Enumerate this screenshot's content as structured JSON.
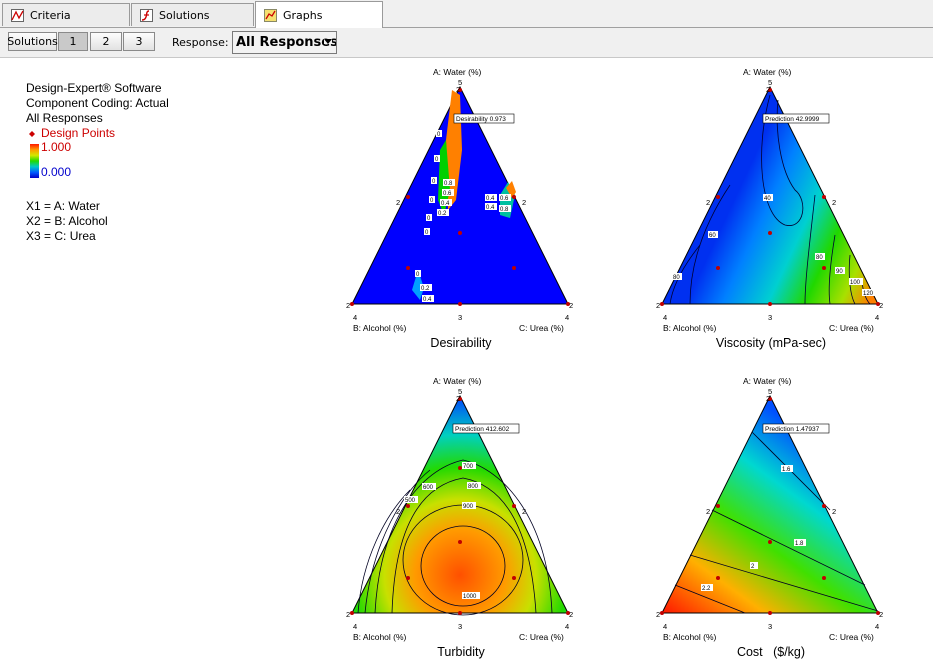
{
  "tabs": [
    {
      "label": "Criteria",
      "icon": "criteria-icon"
    },
    {
      "label": "Solutions",
      "icon": "solutions-icon"
    },
    {
      "label": "Graphs",
      "icon": "graphs-icon"
    }
  ],
  "toolbar": {
    "solutions_label": "Solutions",
    "solution_buttons": [
      "1",
      "2",
      "3"
    ],
    "response_label": "Response:",
    "response_value": "All Responses"
  },
  "legend": {
    "software": "Design-Expert® Software",
    "coding": "Component Coding: Actual",
    "responses": "All Responses",
    "design_points": "Design Points",
    "scale_max": "1.000",
    "scale_min": "0.000",
    "x1": "X1 = A: Water",
    "x2": "X2 = B: Alcohol",
    "x3": "X3 = C: Urea"
  },
  "colors": {
    "design_points": "#cc0000",
    "max_text": "#cc0000",
    "min_text": "#0000cc"
  },
  "plots": [
    {
      "title": "Desirability",
      "top_label": "A: Water (%)",
      "left_label": "B: Alcohol (%)",
      "right_label": "C: Urea (%)",
      "vertex_top": "5",
      "vertex_left": "4",
      "vertex_right": "4",
      "bottom_mid": "3",
      "left_mid": "2",
      "right_mid": "2",
      "corner_left": "2",
      "corner_right": "2",
      "top_small": "2",
      "flag": "Desirability  0.973",
      "contours": [
        "0",
        "0",
        "0",
        "0",
        "0",
        "0",
        "0",
        "0.8",
        "0.6",
        "0.4",
        "0.2",
        "0.2",
        "0.4",
        "0.4",
        "0.6",
        "0.8",
        "0.4",
        "0.2"
      ]
    },
    {
      "title": "Viscosity (mPa-sec)",
      "top_label": "A: Water (%)",
      "left_label": "B: Alcohol (%)",
      "right_label": "C: Urea (%)",
      "vertex_top": "5",
      "vertex_left": "4",
      "vertex_right": "4",
      "bottom_mid": "3",
      "left_mid": "2",
      "right_mid": "2",
      "corner_left": "2",
      "corner_right": "2",
      "top_small": "2",
      "flag": "Prediction  42.9999",
      "contours": [
        "40",
        "60",
        "80",
        "80",
        "90",
        "100",
        "120"
      ]
    },
    {
      "title": "Turbidity",
      "top_label": "A: Water (%)",
      "left_label": "B: Alcohol (%)",
      "right_label": "C: Urea (%)",
      "vertex_top": "5",
      "vertex_left": "4",
      "vertex_right": "4",
      "bottom_mid": "3",
      "left_mid": "2",
      "right_mid": "2",
      "corner_left": "2",
      "corner_right": "2",
      "top_small": "2",
      "flag": "Prediction  412.602",
      "contours": [
        "700",
        "800",
        "900",
        "600",
        "500",
        "1000"
      ]
    },
    {
      "title": "Cost   ($/kg)",
      "top_label": "A: Water (%)",
      "left_label": "B: Alcohol (%)",
      "right_label": "C: Urea (%)",
      "vertex_top": "5",
      "vertex_left": "4",
      "vertex_right": "4",
      "bottom_mid": "3",
      "left_mid": "2",
      "right_mid": "2",
      "corner_left": "2",
      "corner_right": "2",
      "top_small": "2",
      "flag": "Prediction  1.47937",
      "contours": [
        "1.6",
        "1.8",
        "2",
        "2.2"
      ]
    }
  ]
}
